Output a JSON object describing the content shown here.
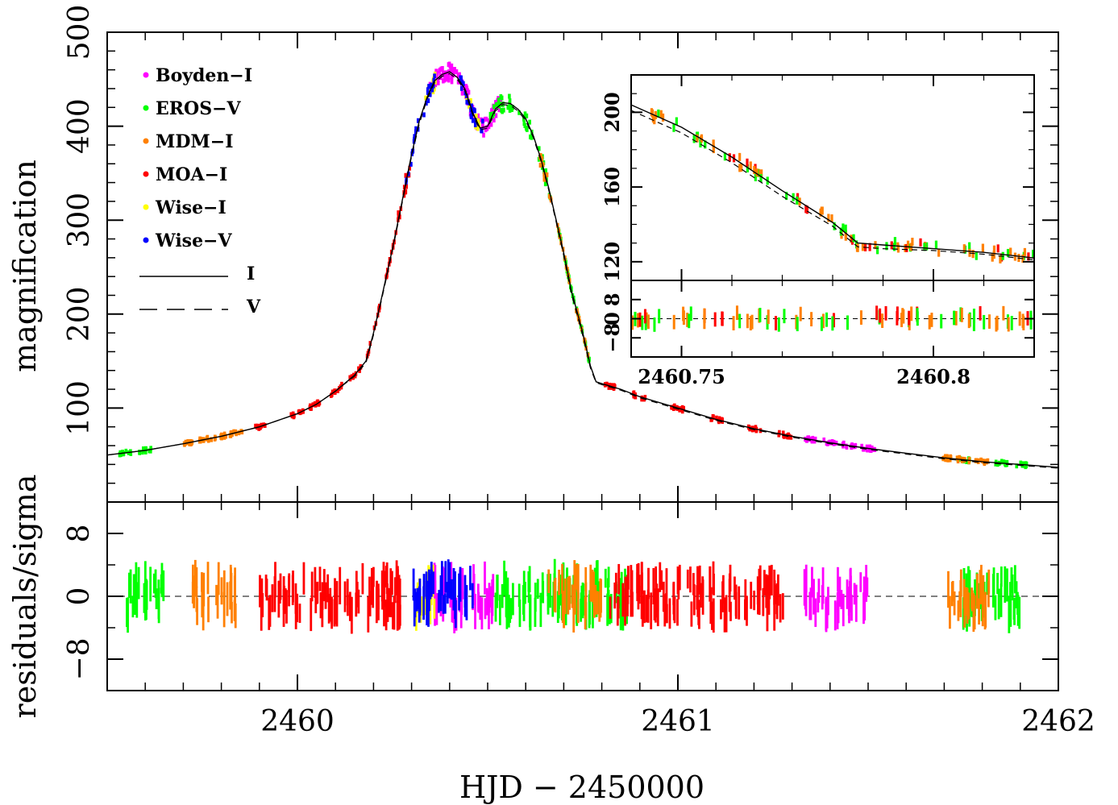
{
  "chart_data": [
    {
      "panel": "main",
      "type": "scatter",
      "ylabel": "magnification",
      "xlim": [
        2459.5,
        2462
      ],
      "ylim": [
        0,
        500
      ],
      "x_ticks": [
        {
          "value": 2460,
          "label": "2460"
        },
        {
          "value": 2461,
          "label": "2461"
        },
        {
          "value": 2462,
          "label": "2462"
        }
      ],
      "y_ticks": [
        {
          "value": 100,
          "label": "100"
        },
        {
          "value": 200,
          "label": "200"
        },
        {
          "value": 300,
          "label": "300"
        },
        {
          "value": 400,
          "label": "400"
        },
        {
          "value": 500,
          "label": "500"
        }
      ],
      "legend": {
        "placement": "top-left",
        "entries": [
          {
            "name": "Boyden−I",
            "color": "#ff00ff",
            "marker": "point"
          },
          {
            "name": "EROS−V",
            "color": "#00ff00",
            "marker": "point"
          },
          {
            "name": "MDM−I",
            "color": "#ff8000",
            "marker": "point"
          },
          {
            "name": "MOA−I",
            "color": "#ff0000",
            "marker": "point"
          },
          {
            "name": "Wise−I",
            "color": "#ffff00",
            "marker": "point"
          },
          {
            "name": "Wise−V",
            "color": "#0000ff",
            "marker": "point"
          },
          {
            "name": "I",
            "color": "#000000",
            "marker": "solid-line"
          },
          {
            "name": "V",
            "color": "#000000",
            "marker": "dashed-line"
          }
        ]
      },
      "model_I": {
        "x": [
          2459.5,
          2459.6,
          2459.7,
          2459.8,
          2459.9,
          2460.0,
          2460.05,
          2460.1,
          2460.15,
          2460.18,
          2460.2,
          2460.22,
          2460.25,
          2460.28,
          2460.3,
          2460.32,
          2460.34,
          2460.36,
          2460.38,
          2460.4,
          2460.42,
          2460.44,
          2460.46,
          2460.48,
          2460.5,
          2460.52,
          2460.54,
          2460.56,
          2460.58,
          2460.6,
          2460.62,
          2460.64,
          2460.66,
          2460.68,
          2460.7,
          2460.72,
          2460.75,
          2460.77,
          2460.785,
          2460.8,
          2460.85,
          2460.9,
          2461.0,
          2461.1,
          2461.2,
          2461.3,
          2461.4,
          2461.5,
          2461.6,
          2461.7,
          2461.8,
          2461.9,
          2462.0
        ],
        "y": [
          50,
          55,
          62,
          70,
          80,
          94,
          104,
          118,
          135,
          150,
          180,
          215,
          270,
          330,
          370,
          405,
          430,
          448,
          455,
          458,
          452,
          440,
          415,
          398,
          400,
          418,
          425,
          424,
          418,
          408,
          390,
          365,
          335,
          300,
          265,
          225,
          180,
          145,
          128,
          126,
          120,
          112,
          100,
          88,
          78,
          70,
          63,
          57,
          52,
          47,
          43,
          40,
          37
        ]
      },
      "model_V": {
        "x": [
          2459.5,
          2459.6,
          2459.7,
          2459.8,
          2459.9,
          2460.0,
          2460.05,
          2460.1,
          2460.15,
          2460.18,
          2460.2,
          2460.22,
          2460.25,
          2460.28,
          2460.3,
          2460.32,
          2460.34,
          2460.36,
          2460.38,
          2460.4,
          2460.42,
          2460.44,
          2460.46,
          2460.48,
          2460.5,
          2460.52,
          2460.54,
          2460.56,
          2460.58,
          2460.6,
          2460.62,
          2460.64,
          2460.66,
          2460.68,
          2460.7,
          2460.72,
          2460.75,
          2460.77,
          2460.785,
          2460.8,
          2460.85,
          2460.9,
          2461.0,
          2461.1,
          2461.2,
          2461.3,
          2461.4,
          2461.5,
          2461.6,
          2461.7,
          2461.8,
          2461.9,
          2462.0
        ],
        "y": [
          50,
          55,
          62,
          70,
          80,
          94,
          104,
          118,
          134,
          148,
          178,
          213,
          268,
          328,
          368,
          402,
          428,
          446,
          453,
          456,
          450,
          438,
          413,
          396,
          398,
          416,
          423,
          422,
          416,
          406,
          388,
          363,
          333,
          298,
          262,
          222,
          177,
          143,
          127,
          125,
          119,
          111,
          99,
          87,
          77,
          69,
          62,
          56,
          51,
          46,
          42,
          39,
          36
        ]
      },
      "series": [
        {
          "name": "Boyden−I",
          "x": [
            2460.36,
            2460.38,
            2460.4,
            2460.42,
            2460.44,
            2460.46,
            2460.48,
            2460.5,
            2460.52,
            2461.35,
            2461.4,
            2461.45,
            2461.5
          ],
          "y": [
            450,
            456,
            458,
            452,
            440,
            415,
            385,
            375,
            395,
            60,
            57,
            54,
            50
          ]
        },
        {
          "name": "EROS−V",
          "x": [
            2459.55,
            2459.6,
            2460.52,
            2460.55,
            2460.6,
            2460.65,
            2460.7,
            2460.72,
            2460.75,
            2461.75,
            2461.85,
            2461.9
          ],
          "y": [
            52,
            55,
            418,
            425,
            408,
            360,
            265,
            225,
            180,
            43,
            41,
            39
          ]
        },
        {
          "name": "MDM−I",
          "x": [
            2459.72,
            2459.76,
            2459.8,
            2459.84,
            2460.65,
            2460.7,
            2460.75,
            2461.7,
            2461.75,
            2461.8
          ],
          "y": [
            62,
            66,
            70,
            74,
            340,
            270,
            185,
            44,
            43,
            42
          ]
        },
        {
          "name": "MOA−I",
          "x": [
            2459.9,
            2460.0,
            2460.05,
            2460.1,
            2460.15,
            2460.2,
            2460.25,
            2460.28,
            2460.82,
            2460.9,
            2461.0,
            2461.1,
            2461.2,
            2461.28
          ],
          "y": [
            80,
            94,
            104,
            118,
            135,
            180,
            270,
            330,
            125,
            112,
            100,
            88,
            78,
            71
          ]
        },
        {
          "name": "Wise−I",
          "x": [
            2460.35,
            2460.46
          ],
          "y": [
            425,
            428
          ]
        },
        {
          "name": "Wise−V",
          "x": [
            2460.3,
            2460.35,
            2460.44,
            2460.47
          ],
          "y": [
            378,
            435,
            455,
            415
          ]
        }
      ]
    },
    {
      "panel": "main-residuals",
      "type": "scatter",
      "ylabel": "residuals/sigma",
      "xlabel": "HJD − 2450000",
      "xlim": [
        2459.5,
        2462
      ],
      "ylim": [
        -12,
        12
      ],
      "y_ticks": [
        {
          "value": 8,
          "label": "8"
        },
        {
          "value": 0,
          "label": "0"
        },
        {
          "value": -8,
          "label": "−8"
        }
      ],
      "series": [
        {
          "name": "Boyden−I",
          "ranges": [
            [
              2460.36,
              2460.52
            ],
            [
              2461.33,
              2461.5
            ]
          ]
        },
        {
          "name": "EROS−V",
          "ranges": [
            [
              2459.55,
              2459.65
            ],
            [
              2460.52,
              2460.87
            ],
            [
              2461.75,
              2461.9
            ]
          ]
        },
        {
          "name": "MDM−I",
          "ranges": [
            [
              2459.72,
              2459.84
            ],
            [
              2460.66,
              2460.8
            ],
            [
              2461.7,
              2461.82
            ]
          ]
        },
        {
          "name": "MOA−I",
          "ranges": [
            [
              2459.9,
              2460.28
            ],
            [
              2460.82,
              2461.28
            ]
          ]
        },
        {
          "name": "Wise−I",
          "ranges": [
            [
              2460.3,
              2460.36
            ]
          ]
        },
        {
          "name": "Wise−V",
          "ranges": [
            [
              2460.3,
              2460.47
            ]
          ]
        }
      ]
    },
    {
      "panel": "inset",
      "type": "scatter",
      "xlim": [
        2460.74,
        2460.82
      ],
      "ylim": [
        110,
        220
      ],
      "x_ticks": [
        {
          "value": 2460.75,
          "label": "2460.75"
        },
        {
          "value": 2460.8,
          "label": "2460.8"
        }
      ],
      "y_ticks": [
        {
          "value": 120,
          "label": "120"
        },
        {
          "value": 160,
          "label": "160"
        },
        {
          "value": 200,
          "label": "200"
        }
      ],
      "model_I": {
        "x": [
          2460.74,
          2460.75,
          2460.76,
          2460.77,
          2460.78,
          2460.785,
          2460.79,
          2460.8,
          2460.81,
          2460.82
        ],
        "y": [
          204,
          192,
          176,
          158,
          141,
          130,
          129,
          127,
          125,
          122
        ]
      },
      "model_V": {
        "x": [
          2460.74,
          2460.75,
          2460.76,
          2460.77,
          2460.78,
          2460.785,
          2460.79,
          2460.8,
          2460.81,
          2460.82
        ],
        "y": [
          201,
          189,
          173,
          155,
          139,
          128,
          127,
          126,
          124,
          121
        ]
      }
    },
    {
      "panel": "inset-residuals",
      "type": "scatter",
      "xlim": [
        2460.74,
        2460.82
      ],
      "ylim": [
        -16,
        16
      ],
      "y_ticks": [
        {
          "value": 8,
          "label": "8"
        },
        {
          "value": 0,
          "label": "0"
        },
        {
          "value": -8,
          "label": "−8"
        }
      ]
    }
  ]
}
